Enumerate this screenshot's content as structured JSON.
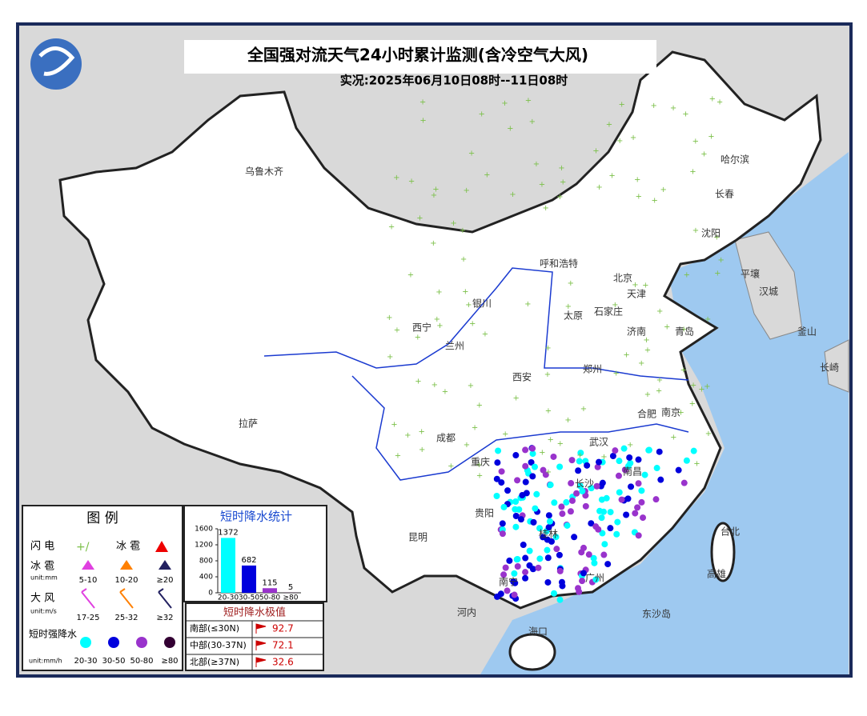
{
  "header": {
    "title": "全国强对流天气24小时累计监测(含冷空气大风)",
    "subtitle": "实况:2025年06月10日08时--11日08时"
  },
  "map": {
    "labels": [
      "乌鲁木齐",
      "哈尔滨",
      "长春",
      "沈阳",
      "呼和浩特",
      "北京",
      "天津",
      "平壤",
      "汉城",
      "釜山",
      "长崎",
      "太原",
      "石家庄",
      "济南",
      "青岛",
      "银川",
      "西宁",
      "兰州",
      "郑州",
      "西安",
      "合肥",
      "南京",
      "拉萨",
      "成都",
      "武汉",
      "重庆",
      "长沙",
      "南昌",
      "贵阳",
      "昆明",
      "桂林",
      "台北",
      "高雄",
      "广州",
      "南宁",
      "河内",
      "东沙岛",
      "海口"
    ]
  },
  "legend": {
    "title": "图 例",
    "lightning": "闪 电",
    "hail_symbol": "冰 雹",
    "hail": "冰 雹",
    "hail_unit": "unit:mm",
    "hail_levels": [
      "5-10",
      "10-20",
      "≥20"
    ],
    "wind": "大 风",
    "wind_unit": "unit:m/s",
    "wind_levels": [
      "17-25",
      "25-32",
      "≥32"
    ],
    "rain": "短时强降水",
    "rain_unit": "unit:mm/h",
    "rain_levels": [
      "20-30",
      "30-50",
      "50-80",
      "≥80"
    ]
  },
  "chart_data": {
    "type": "bar",
    "title": "短时降水统计",
    "categories": [
      "20-30",
      "30-50",
      "50-80",
      "≥80"
    ],
    "values": [
      1372,
      682,
      115,
      5
    ],
    "colors": [
      "#00ffff",
      "#0000dd",
      "#9933cc",
      "#330033"
    ],
    "ylim": [
      0,
      1600
    ],
    "yticks": [
      0,
      400,
      800,
      1200,
      1600
    ]
  },
  "extremes": {
    "title": "短时降水极值",
    "rows": [
      {
        "label": "南部(≤30N)",
        "value": "92.7"
      },
      {
        "label": "中部(30-37N)",
        "value": "72.1"
      },
      {
        "label": "北部(≥37N)",
        "value": "32.6"
      }
    ]
  }
}
